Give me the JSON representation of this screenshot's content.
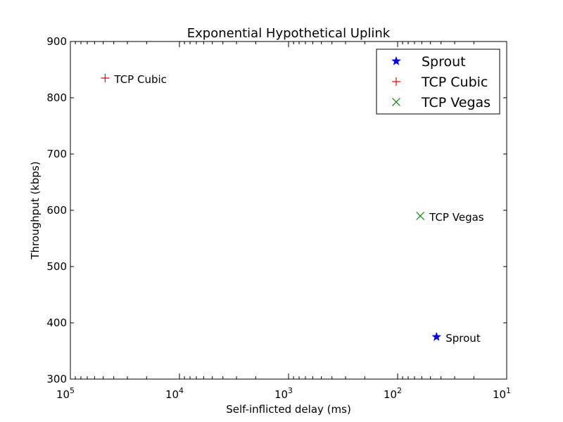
{
  "chart_data": {
    "type": "scatter",
    "title": "Exponential Hypothetical Uplink",
    "xlabel": "Self-inflicted delay (ms)",
    "ylabel": "Throughput (kbps)",
    "x_scale": "log",
    "x_reversed": true,
    "xlim": [
      100000,
      10
    ],
    "ylim": [
      300,
      900
    ],
    "x_ticks": [
      {
        "value": 100000,
        "base": "10",
        "exp": "5"
      },
      {
        "value": 10000,
        "base": "10",
        "exp": "4"
      },
      {
        "value": 1000,
        "base": "10",
        "exp": "3"
      },
      {
        "value": 100,
        "base": "10",
        "exp": "2"
      },
      {
        "value": 10,
        "base": "10",
        "exp": "1"
      }
    ],
    "y_ticks": [
      300,
      400,
      500,
      600,
      700,
      800,
      900
    ],
    "grid": false,
    "legend_position": "top-right",
    "series": [
      {
        "name": "Sprout",
        "marker": "star",
        "color": "#0000ff",
        "x": 44,
        "y": 375,
        "annotation": "Sprout"
      },
      {
        "name": "TCP Cubic",
        "marker": "plus",
        "color": "#ff0000",
        "x": 48000,
        "y": 835,
        "annotation": "TCP Cubic"
      },
      {
        "name": "TCP Vegas",
        "marker": "x",
        "color": "#008000",
        "x": 62,
        "y": 590,
        "annotation": "TCP Vegas"
      }
    ]
  }
}
